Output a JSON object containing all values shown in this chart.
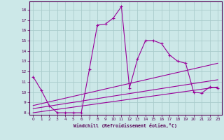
{
  "xlabel": "Windchill (Refroidissement éolien,°C)",
  "background_color": "#cce8e8",
  "grid_color": "#aacccc",
  "line_color": "#990099",
  "xlim": [
    -0.5,
    23.5
  ],
  "ylim": [
    7.8,
    18.8
  ],
  "yticks": [
    8,
    9,
    10,
    11,
    12,
    13,
    14,
    15,
    16,
    17,
    18
  ],
  "xticks": [
    0,
    1,
    2,
    3,
    4,
    5,
    6,
    7,
    8,
    9,
    10,
    11,
    12,
    13,
    14,
    15,
    16,
    17,
    18,
    19,
    20,
    21,
    22,
    23
  ],
  "line1_x": [
    0,
    1,
    2,
    3,
    4,
    5,
    6,
    7,
    8,
    9,
    10,
    11,
    12,
    13,
    14,
    15,
    16,
    17,
    18,
    19,
    20,
    21,
    22,
    23
  ],
  "line1_y": [
    11.5,
    10.2,
    8.7,
    8.0,
    8.0,
    8.0,
    8.0,
    12.2,
    16.5,
    16.6,
    17.2,
    18.3,
    10.4,
    13.2,
    15.0,
    15.0,
    14.7,
    13.6,
    13.0,
    12.8,
    10.0,
    9.9,
    10.5,
    10.4
  ],
  "line2_x": [
    0,
    23
  ],
  "line2_y": [
    8.7,
    12.8
  ],
  "line3_x": [
    0,
    23
  ],
  "line3_y": [
    8.4,
    11.2
  ],
  "line4_x": [
    0,
    23
  ],
  "line4_y": [
    8.0,
    10.5
  ]
}
